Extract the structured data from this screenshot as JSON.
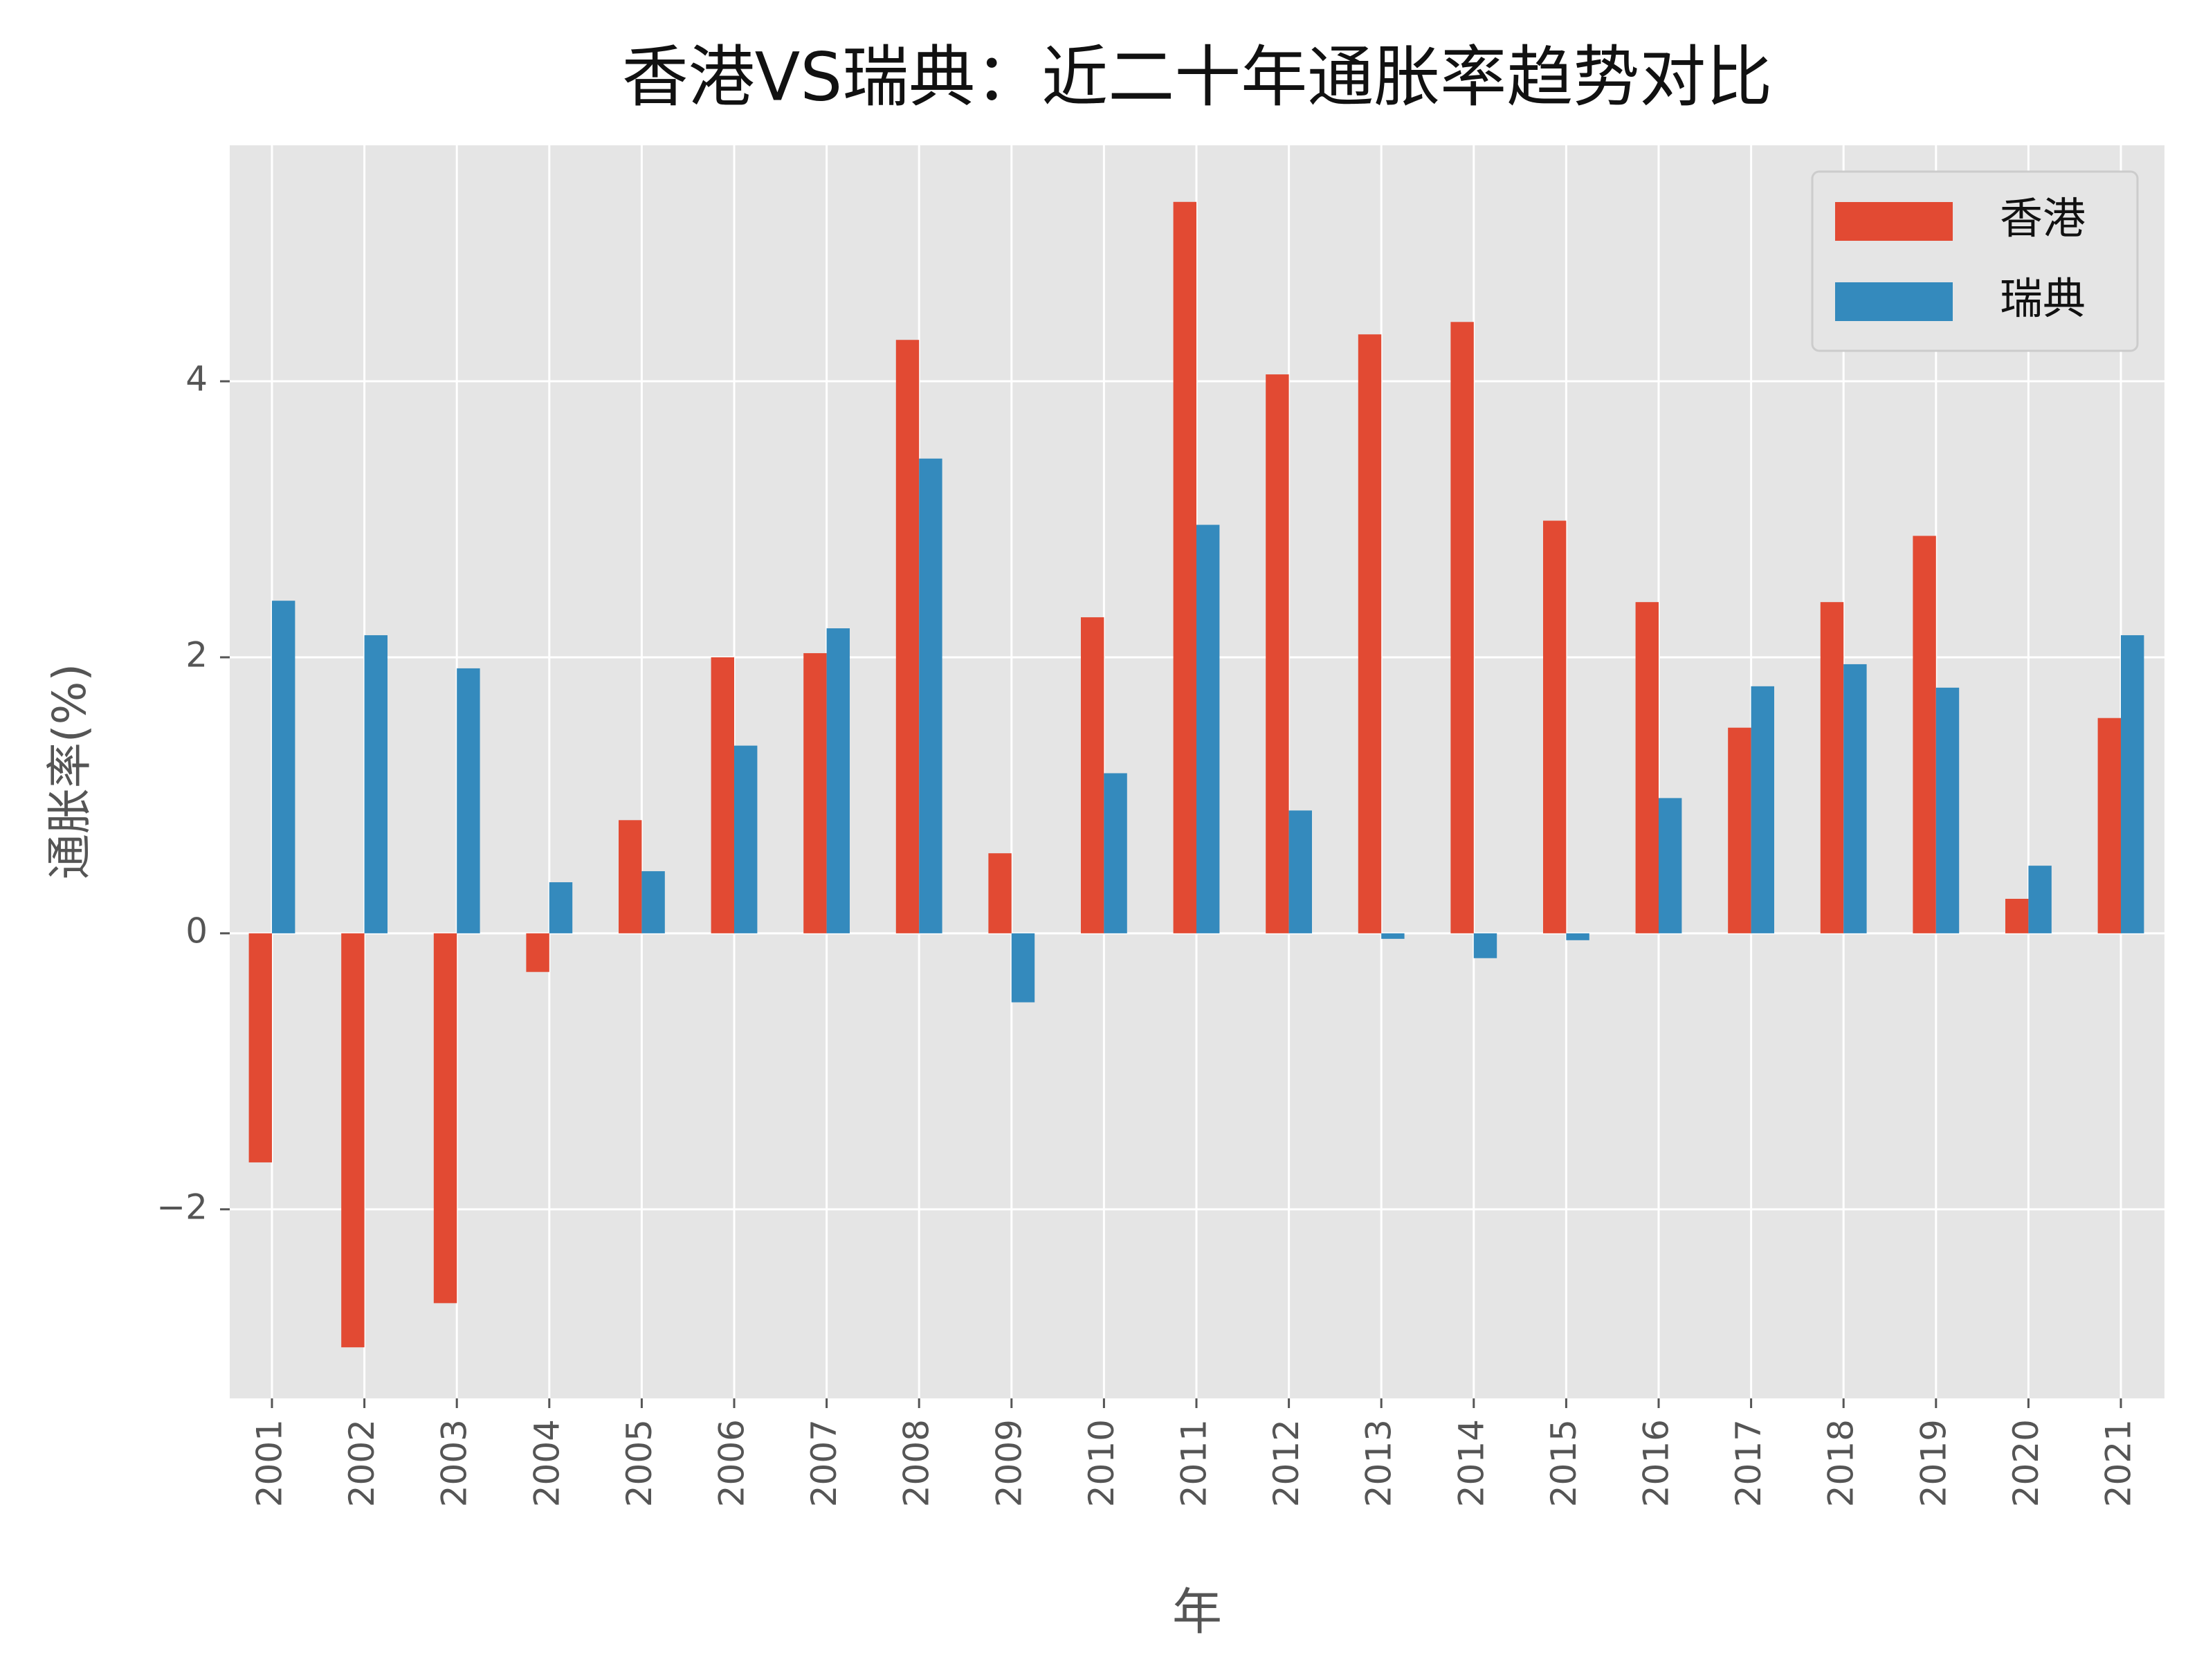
{
  "chart_data": {
    "type": "bar",
    "title": "香港VS瑞典：近二十年通胀率趋势对比",
    "x_label": "年",
    "y_label": "通胀率(%)",
    "categories": [
      "2001",
      "2002",
      "2003",
      "2004",
      "2005",
      "2006",
      "2007",
      "2008",
      "2009",
      "2010",
      "2011",
      "2012",
      "2013",
      "2014",
      "2015",
      "2016",
      "2017",
      "2018",
      "2019",
      "2020",
      "2021"
    ],
    "series": [
      {
        "name": "香港",
        "color": "#e24a33",
        "values": [
          -1.66,
          -3.0,
          -2.68,
          -0.28,
          0.82,
          2.0,
          2.03,
          4.3,
          0.58,
          2.29,
          5.3,
          4.05,
          4.34,
          4.43,
          2.99,
          2.4,
          1.49,
          2.4,
          2.88,
          0.25,
          1.56
        ]
      },
      {
        "name": "瑞典",
        "color": "#348abd",
        "values": [
          2.41,
          2.16,
          1.92,
          0.37,
          0.45,
          1.36,
          2.21,
          3.44,
          -0.5,
          1.16,
          2.96,
          0.89,
          -0.04,
          -0.18,
          -0.05,
          0.98,
          1.79,
          1.95,
          1.78,
          0.49,
          2.16
        ]
      }
    ],
    "ylim": [
      -3.37,
      5.71
    ],
    "yticks": [
      {
        "value": -2,
        "label": "−2"
      },
      0,
      2,
      4
    ],
    "grid": true,
    "legend": "upper right"
  }
}
